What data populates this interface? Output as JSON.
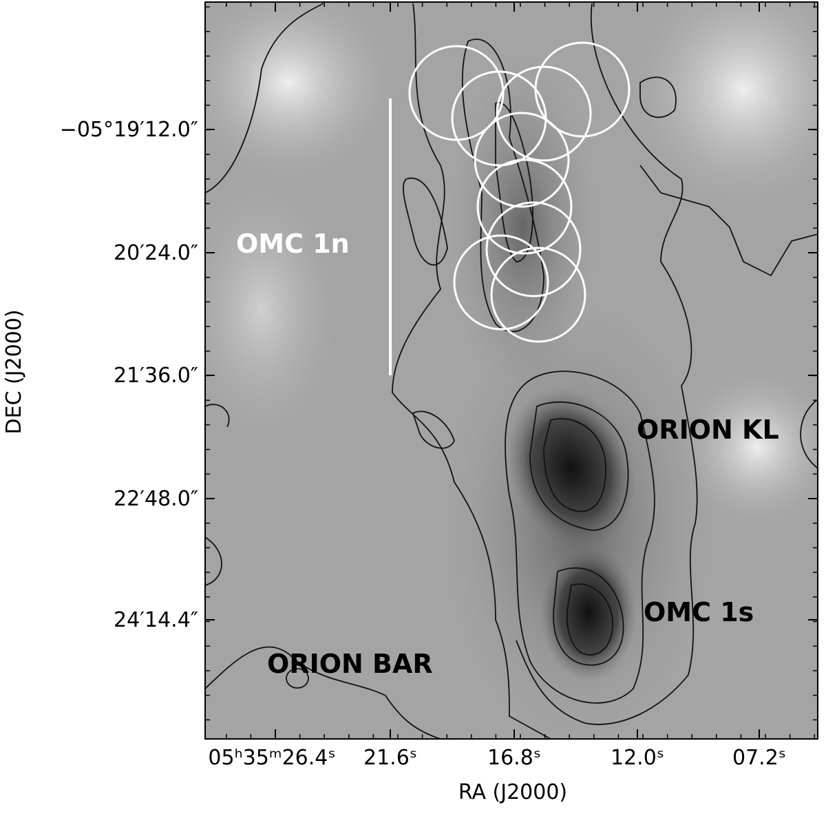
{
  "figure": {
    "x_axis": {
      "label": "RA (J2000)",
      "ticks": [
        "05ʰ35ᵐ26.4ˢ",
        "21.6ˢ",
        "16.8ˢ",
        "12.0ˢ",
        "07.2ˢ"
      ]
    },
    "y_axis": {
      "label": "DEC (J2000)",
      "ticks": [
        "−05°19′12.0″",
        "20′24.0″",
        "21′36.0″",
        "22′48.0″",
        "24′14.4″"
      ]
    },
    "annotations": [
      "OMC 1n",
      "ORION KL",
      "OMC 1s",
      "ORION BAR"
    ]
  }
}
